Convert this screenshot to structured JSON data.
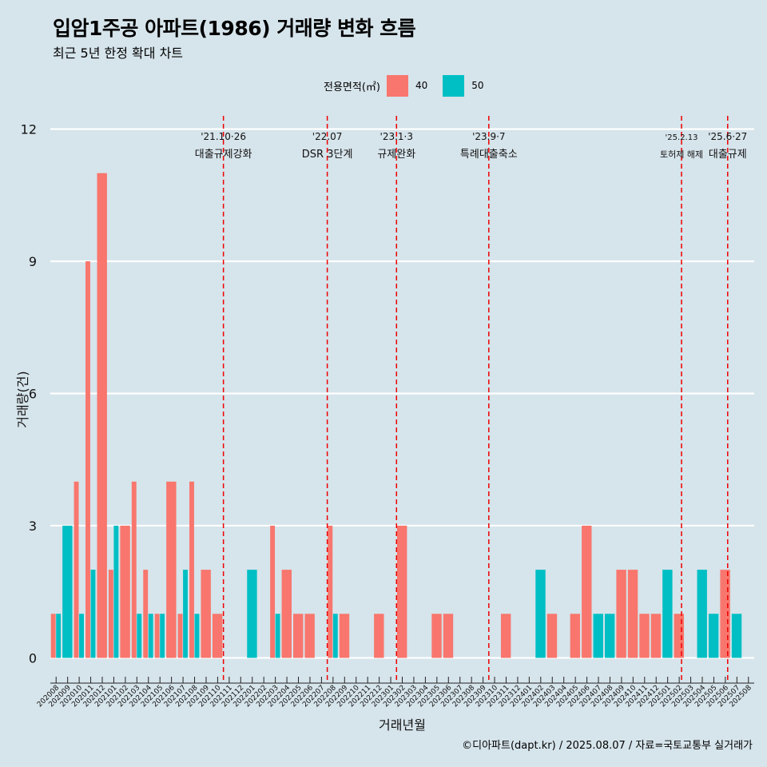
{
  "title": "입암1주공 아파트(1986) 거래량 변화 흐름",
  "subtitle": "최근 5년 한정 확대 차트",
  "caption": "©디아파트(dapt.kr) / 2025.08.07 / 자료=국토교통부 실거래가",
  "legend": {
    "title": "전용면적(㎡)",
    "items": [
      {
        "label": "40",
        "color": "#f8766d"
      },
      {
        "label": "50",
        "color": "#00bfc4"
      }
    ]
  },
  "chart_data": {
    "type": "bar",
    "xlabel": "거래년월",
    "ylabel": "거래량(건)",
    "ylim": [
      -0.5,
      12.3
    ],
    "yticks": [
      0,
      3,
      6,
      9,
      12
    ],
    "grid": true,
    "legend_position": "top",
    "categories": [
      "202008",
      "202009",
      "202010",
      "202011",
      "202012",
      "202101",
      "202102",
      "202103",
      "202104",
      "202105",
      "202106",
      "202107",
      "202108",
      "202109",
      "202110",
      "202111",
      "202112",
      "202201",
      "202202",
      "202203",
      "202204",
      "202205",
      "202206",
      "202207",
      "202208",
      "202209",
      "202210",
      "202211",
      "202212",
      "202301",
      "202302",
      "202303",
      "202304",
      "202305",
      "202306",
      "202307",
      "202308",
      "202309",
      "202310",
      "202311",
      "202312",
      "202401",
      "202402",
      "202403",
      "202404",
      "202405",
      "202406",
      "202407",
      "202408",
      "202409",
      "202410",
      "202411",
      "202412",
      "202501",
      "202502",
      "202503",
      "202504",
      "202505",
      "202506",
      "202507",
      "202508"
    ],
    "series": [
      {
        "name": "40",
        "color": "#f8766d",
        "values": [
          1,
          0,
          4,
          9,
          11,
          2,
          3,
          4,
          2,
          1,
          4,
          1,
          4,
          2,
          1,
          0,
          0,
          0,
          0,
          3,
          2,
          1,
          1,
          0,
          3,
          1,
          0,
          0,
          1,
          0,
          3,
          0,
          0,
          1,
          1,
          0,
          0,
          0,
          0,
          1,
          0,
          0,
          0,
          1,
          0,
          1,
          3,
          0,
          0,
          2,
          2,
          1,
          1,
          0,
          1,
          0,
          0,
          0,
          2,
          0,
          0
        ]
      },
      {
        "name": "50",
        "color": "#00bfc4",
        "values": [
          1,
          3,
          1,
          2,
          0,
          3,
          0,
          1,
          1,
          1,
          0,
          2,
          1,
          0,
          0,
          0,
          0,
          2,
          0,
          1,
          0,
          0,
          0,
          0,
          1,
          0,
          0,
          0,
          0,
          0,
          0,
          0,
          0,
          0,
          0,
          0,
          0,
          0,
          0,
          0,
          0,
          0,
          2,
          0,
          0,
          0,
          0,
          1,
          1,
          0,
          0,
          0,
          0,
          2,
          0,
          0,
          2,
          1,
          0,
          1,
          0
        ]
      }
    ],
    "annotations": [
      {
        "category": "202110",
        "offset": 0.5,
        "date": "'21.10·26",
        "label": "대출규제강화",
        "size": "normal"
      },
      {
        "category": "202207",
        "offset": 0.5,
        "date": "'22.07",
        "label": "DSR 3단계",
        "size": "normal"
      },
      {
        "category": "202301",
        "offset": 0.5,
        "date": "'23.1·3",
        "label": "규제완화",
        "size": "normal"
      },
      {
        "category": "202309",
        "offset": 0.5,
        "date": "'23.9·7",
        "label": "특례대출축소",
        "size": "normal"
      },
      {
        "category": "202502",
        "offset": 0.2,
        "date": "'25.2.13",
        "label": "토허제 해제",
        "size": "small"
      },
      {
        "category": "202506",
        "offset": 0.2,
        "date": "'25.6·27",
        "label": "대출규제",
        "size": "normal"
      }
    ]
  }
}
